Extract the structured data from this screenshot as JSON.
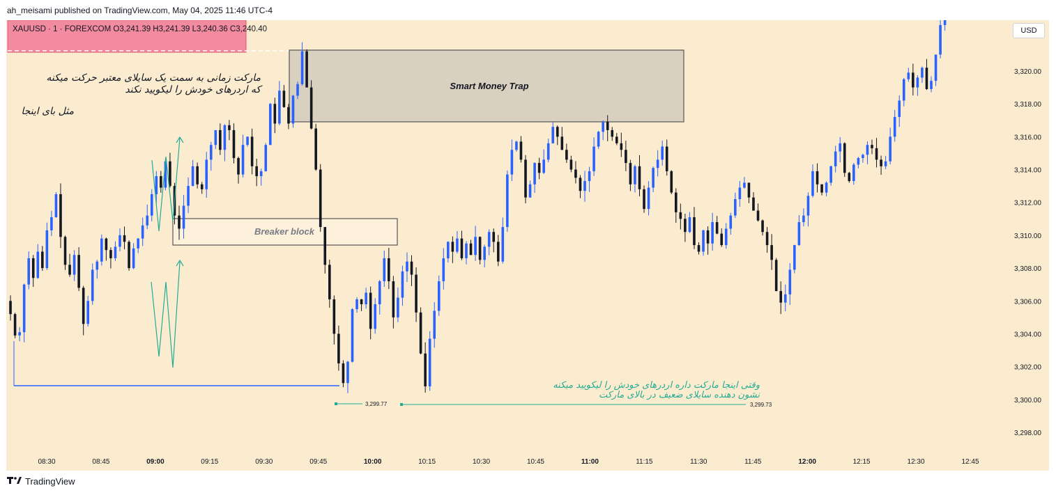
{
  "header": {
    "published_text": "ah_meisami published on TradingView.com, May 04, 2025 11:46 UTC-4"
  },
  "legend": {
    "ohlc_text": "XAUUSD · 1 · FOREXCOM  O3,241.39  H3,241.39  L3,240.36  C3,240.40"
  },
  "currency_button": "USD",
  "footer": {
    "brand": "TradingView",
    "logo_icon": "tradingview-logo-icon"
  },
  "annotations": {
    "note_top": [
      "مارکت زمانی به سمت یک سایلای معتبر حرکت میکنه",
      "که اردرهای خودش را لیکویید نکند"
    ],
    "note_like": "مثل بای اینجا",
    "smart_money_trap": "Smart Money Trap",
    "breaker_block": "Breaker block",
    "note_bottom": [
      "وقتی اینجا مارکت داره اردرهای خودش را لیکویید میکنه",
      "نشون دهنده سایلای ضعیف در بالای مارکت"
    ],
    "low_left_label": "3,299.77",
    "low_right_label": "3,299.73"
  },
  "colors": {
    "background": "#fbecd0",
    "bull": "#2962ff",
    "bear": "#131722",
    "trap_box": "#d9d0c0",
    "breaker_box": "#fdf1dc",
    "red_zone": "#f28aa0",
    "green": "#22ab94",
    "blue_line": "#2962ff"
  },
  "chart_data": {
    "type": "candlestick",
    "symbol": "XAUUSD",
    "timeframe": "1",
    "ylim": [
      3297,
      3323.2
    ],
    "y_ticks": [
      "3,298.00",
      "3,300.00",
      "3,302.00",
      "3,304.00",
      "3,306.00",
      "3,308.00",
      "3,310.00",
      "3,312.00",
      "3,314.00",
      "3,316.00",
      "3,318.00",
      "3,320.00"
    ],
    "x_ticks": [
      "08:30",
      "08:45",
      "09:00",
      "09:15",
      "09:30",
      "09:45",
      "10:00",
      "10:15",
      "10:30",
      "10:45",
      "11:00",
      "11:15",
      "11:30",
      "11:45",
      "12:00",
      "12:15",
      "12:30",
      "12:45"
    ],
    "time_start": "08:20",
    "time_end": "12:38",
    "candles_close": [
      3305.2,
      3303.9,
      3304.1,
      3307.0,
      3308.6,
      3307.4,
      3309.0,
      3308.0,
      3310.3,
      3311.1,
      3312.5,
      3309.9,
      3308.2,
      3307.6,
      3308.8,
      3306.8,
      3304.6,
      3306.0,
      3307.9,
      3308.4,
      3309.8,
      3309.1,
      3308.6,
      3309.3,
      3310.0,
      3309.6,
      3308.0,
      3309.2,
      3309.8,
      3310.6,
      3311.2,
      3312.5,
      3313.6,
      3312.9,
      3314.5,
      3313.0,
      3311.2,
      3310.4,
      3311.8,
      3313.0,
      3314.2,
      3313.1,
      3312.8,
      3314.6,
      3315.5,
      3316.4,
      3315.2,
      3316.7,
      3316.4,
      3314.7,
      3313.7,
      3315.5,
      3316.0,
      3314.2,
      3313.6,
      3313.9,
      3315.5,
      3318.0,
      3316.8,
      3318.8,
      3317.8,
      3316.8,
      3318.5,
      3319.2,
      3321.2,
      3319.0,
      3316.5,
      3314.0,
      3310.5,
      3308.2,
      3306.1,
      3304.0,
      3302.2,
      3301.0,
      3302.3,
      3305.5,
      3306.1,
      3305.8,
      3306.5,
      3304.3,
      3305.8,
      3307.2,
      3308.6,
      3307.2,
      3305.0,
      3306.2,
      3307.8,
      3308.4,
      3307.6,
      3305.3,
      3302.8,
      3300.8,
      3303.7,
      3305.4,
      3307.2,
      3308.6,
      3309.6,
      3309.0,
      3309.8,
      3308.6,
      3309.5,
      3308.8,
      3309.9,
      3308.5,
      3309.3,
      3310.2,
      3309.6,
      3308.4,
      3310.5,
      3313.7,
      3315.2,
      3315.7,
      3314.6,
      3312.3,
      3313.1,
      3314.4,
      3313.8,
      3314.6,
      3315.6,
      3316.6,
      3316.0,
      3315.2,
      3314.6,
      3314.0,
      3313.5,
      3312.7,
      3313.3,
      3313.9,
      3315.4,
      3316.3,
      3316.9,
      3316.4,
      3316.0,
      3315.6,
      3315.2,
      3314.4,
      3313.1,
      3314.2,
      3312.8,
      3311.6,
      3312.9,
      3314.1,
      3314.6,
      3315.4,
      3313.9,
      3312.6,
      3311.4,
      3311.0,
      3310.2,
      3311.1,
      3309.4,
      3309.0,
      3310.3,
      3309.5,
      3310.8,
      3310.1,
      3309.4,
      3310.4,
      3311.2,
      3312.2,
      3312.9,
      3313.2,
      3312.3,
      3311.5,
      3310.9,
      3310.2,
      3309.4,
      3308.5,
      3306.6,
      3305.9,
      3306.4,
      3307.9,
      3309.4,
      3310.8,
      3311.2,
      3312.4,
      3313.9,
      3313.1,
      3312.6,
      3313.2,
      3314.2,
      3315.1,
      3315.6,
      3313.8,
      3313.3,
      3314.3,
      3314.7,
      3314.9,
      3315.5,
      3315.3,
      3314.6,
      3314.2,
      3314.5,
      3316.0,
      3317.2,
      3318.2,
      3319.5,
      3319.9,
      3319.0,
      3319.6,
      3320.2,
      3318.9,
      3319.4,
      3321.0,
      3322.8,
      3323.1
    ]
  }
}
